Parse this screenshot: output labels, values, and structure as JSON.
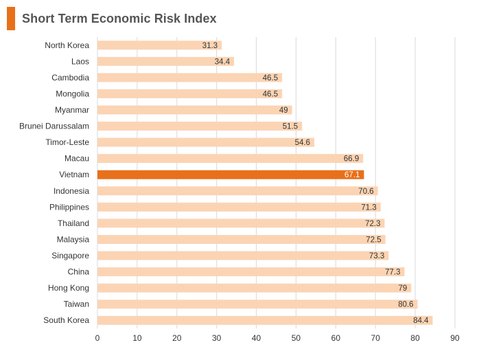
{
  "colors": {
    "accent": "#e8701a",
    "bar": "#fbd4b4",
    "highlight": "#e8701a",
    "grid": "#d9d9d9"
  },
  "chart_data": {
    "type": "bar",
    "orientation": "horizontal",
    "title": "Short Term Economic Risk Index",
    "xlabel": "",
    "ylabel": "",
    "xlim": [
      0,
      90
    ],
    "ticks": [
      0,
      10,
      20,
      30,
      40,
      50,
      60,
      70,
      80,
      90
    ],
    "grid": true,
    "highlight": "Vietnam",
    "categories": [
      "North Korea",
      "Laos",
      "Cambodia",
      "Mongolia",
      "Myanmar",
      "Brunei Darussalam",
      "Timor-Leste",
      "Macau",
      "Vietnam",
      "Indonesia",
      "Philippines",
      "Thailand",
      "Malaysia",
      "Singapore",
      "China",
      "Hong Kong",
      "Taiwan",
      "South Korea"
    ],
    "values": [
      31.3,
      34.4,
      46.5,
      46.5,
      49,
      51.5,
      54.6,
      66.9,
      67.1,
      70.6,
      71.3,
      72.3,
      72.5,
      73.3,
      77.3,
      79,
      80.6,
      84.4
    ]
  }
}
